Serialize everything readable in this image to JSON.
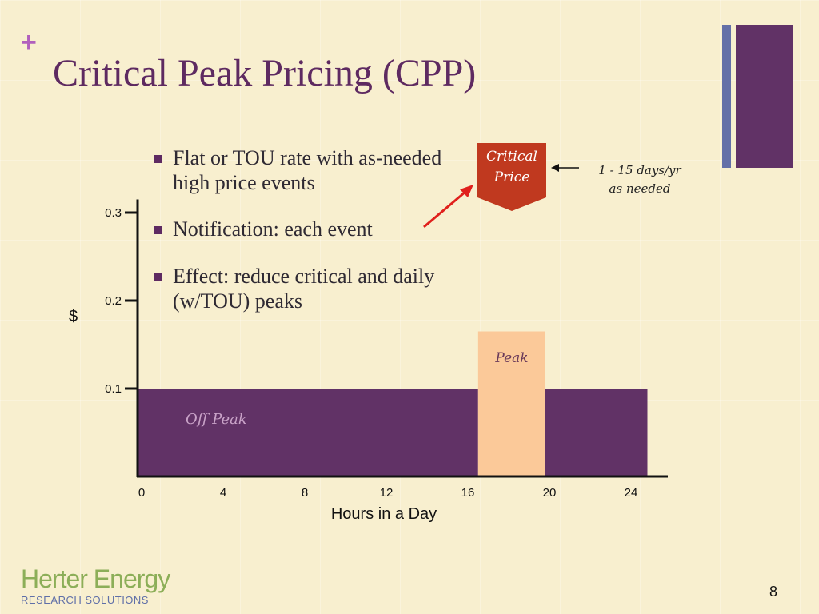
{
  "slide": {
    "plus_symbol": "+",
    "title": "Critical Peak Pricing (CPP)",
    "slide_number": "8"
  },
  "bullets": [
    "Flat or TOU rate with as-needed high price events",
    "Notification: each event",
    "Effect: reduce critical and daily (w/TOU) peaks"
  ],
  "callout": {
    "badge_line1": "Critical",
    "badge_line2": "Price",
    "note_line1": "1 - 15 days/yr",
    "note_line2": "as needed"
  },
  "logo": {
    "line1": "Herter Energy",
    "line2": "RESEARCH SOLUTIONS"
  },
  "colors": {
    "title": "#5e2a61",
    "off_peak_fill": "#613266",
    "peak_fill": "#fbc999",
    "critical_fill": "#c0391f",
    "arrow_red": "#e0201c",
    "background": "#f8efcf"
  },
  "chart_data": {
    "type": "bar",
    "xlabel": "Hours in a Day",
    "ylabel": "$",
    "xlim": [
      0,
      26
    ],
    "ylim": [
      0,
      0.315
    ],
    "x_ticks": [
      0,
      4,
      8,
      12,
      16,
      20,
      24
    ],
    "y_ticks": [
      0.1,
      0.2,
      0.3
    ],
    "y_tick_labels": [
      "0.1",
      "0.2",
      "0.3"
    ],
    "grid": false,
    "segments": [
      {
        "name": "Off Peak",
        "x_start": 0,
        "x_end": 16.7,
        "value": 0.1
      },
      {
        "name": "Peak",
        "x_start": 16.7,
        "x_end": 20,
        "value": 0.165
      },
      {
        "name": "Off Peak",
        "x_start": 20,
        "x_end": 25,
        "value": 0.1
      }
    ],
    "annotations": [
      "Peak",
      "Off Peak"
    ]
  }
}
